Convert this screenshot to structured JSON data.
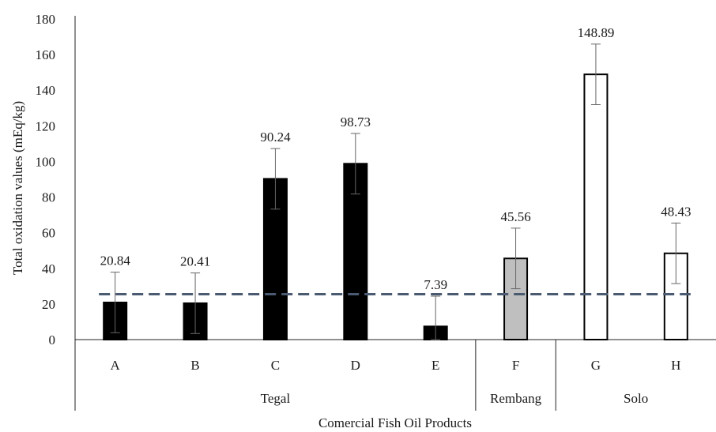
{
  "chart_data": {
    "type": "bar",
    "categories": [
      "A",
      "B",
      "C",
      "D",
      "E",
      "F",
      "G",
      "H"
    ],
    "groups": [
      {
        "name": "Tegal",
        "categories": [
          "A",
          "B",
          "C",
          "D",
          "E"
        ]
      },
      {
        "name": "Rembang",
        "categories": [
          "F"
        ]
      },
      {
        "name": "Solo",
        "categories": [
          "G",
          "H"
        ]
      }
    ],
    "values": [
      20.84,
      20.41,
      90.24,
      98.73,
      7.39,
      45.56,
      148.89,
      48.43
    ],
    "data_labels": [
      "20.84",
      "20.41",
      "90.24",
      "98.73",
      "7.39",
      "45.56",
      "148.89",
      "48.43"
    ],
    "error": [
      17,
      17,
      17,
      17,
      17,
      17,
      17,
      17
    ],
    "bar_fill": [
      "#000000",
      "#000000",
      "#000000",
      "#000000",
      "#000000",
      "#bfbfbf",
      "#ffffff",
      "#ffffff"
    ],
    "reference_line": {
      "value": 25.5,
      "color": "#4a5a70",
      "style": "dashed"
    },
    "xlabel": "Comercial Fish Oil Products",
    "ylabel": "Total oxidation values (mEq/kg)",
    "ylim": [
      0,
      180
    ],
    "yticks": [
      0,
      20,
      40,
      60,
      80,
      100,
      120,
      140,
      160,
      180
    ],
    "grid": false
  }
}
